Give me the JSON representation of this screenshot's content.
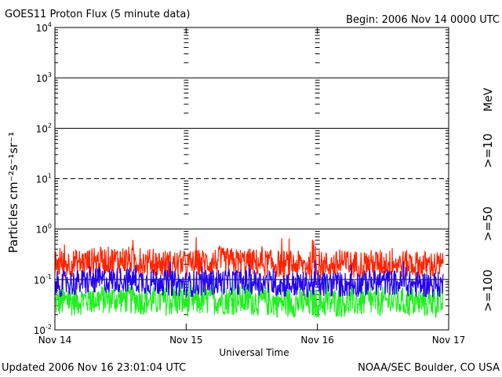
{
  "header": {
    "title": "GOES11 Proton Flux (5 minute data)",
    "begin": "Begin: 2006 Nov 14 0000 UTC"
  },
  "footer": {
    "updated": "Updated 2006 Nov 16 23:01:04 UTC",
    "source": "NOAA/SEC Boulder, CO USA"
  },
  "chart_data": {
    "type": "line",
    "title": "GOES11 Proton Flux (5 minute data)",
    "xlabel": "Universal Time",
    "ylabel": "Particles cm⁻²s⁻¹sr⁻¹",
    "yscale": "log",
    "ylim": [
      0.01,
      10000
    ],
    "xlim": [
      "2006-11-14 00:00",
      "2006-11-17 00:00"
    ],
    "x_ticks": [
      "Nov 14",
      "Nov 15",
      "Nov 16",
      "Nov 17"
    ],
    "y_ticks": [
      {
        "base": "10",
        "exp": "-2",
        "value": 0.01
      },
      {
        "base": "10",
        "exp": "-1",
        "value": 0.1
      },
      {
        "base": "10",
        "exp": "0",
        "value": 1
      },
      {
        "base": "10",
        "exp": "1",
        "value": 10
      },
      {
        "base": "10",
        "exp": "2",
        "value": 100
      },
      {
        "base": "10",
        "exp": "3",
        "value": 1000
      },
      {
        "base": "10",
        "exp": "4",
        "value": 10000
      }
    ],
    "grid": "horizontal lines at each decade (10^1 dashed), vertical tick columns at day boundaries",
    "legend_placement": "right side, vertical text",
    "unit_label": "MeV",
    "series": [
      {
        "name": ">=10",
        "color": "#ff2200",
        "x": [
          "2006-11-14 00:00",
          "2006-11-14 06:00",
          "2006-11-14 12:00",
          "2006-11-14 18:00",
          "2006-11-15 00:00",
          "2006-11-15 06:00",
          "2006-11-15 12:00",
          "2006-11-15 18:00",
          "2006-11-16 00:00",
          "2006-11-16 06:00",
          "2006-11-16 12:00",
          "2006-11-16 18:00",
          "2006-11-16 23:00"
        ],
        "y": [
          0.2,
          0.22,
          0.25,
          0.21,
          0.2,
          0.23,
          0.22,
          0.2,
          0.19,
          0.2,
          0.21,
          0.2,
          0.19
        ]
      },
      {
        "name": ">=50",
        "color": "#2200ee",
        "x": [
          "2006-11-14 00:00",
          "2006-11-14 06:00",
          "2006-11-14 12:00",
          "2006-11-14 18:00",
          "2006-11-15 00:00",
          "2006-11-15 06:00",
          "2006-11-15 12:00",
          "2006-11-15 18:00",
          "2006-11-16 00:00",
          "2006-11-16 06:00",
          "2006-11-16 12:00",
          "2006-11-16 18:00",
          "2006-11-16 23:00"
        ],
        "y": [
          0.08,
          0.09,
          0.1,
          0.09,
          0.08,
          0.09,
          0.09,
          0.08,
          0.08,
          0.08,
          0.09,
          0.08,
          0.08
        ]
      },
      {
        "name": ">=100",
        "color": "#22ee22",
        "x": [
          "2006-11-14 00:00",
          "2006-11-14 06:00",
          "2006-11-14 12:00",
          "2006-11-14 18:00",
          "2006-11-15 00:00",
          "2006-11-15 06:00",
          "2006-11-15 12:00",
          "2006-11-15 18:00",
          "2006-11-16 00:00",
          "2006-11-16 06:00",
          "2006-11-16 12:00",
          "2006-11-16 18:00",
          "2006-11-16 23:00"
        ],
        "y": [
          0.035,
          0.04,
          0.042,
          0.038,
          0.036,
          0.04,
          0.038,
          0.035,
          0.034,
          0.036,
          0.037,
          0.035,
          0.034
        ]
      }
    ]
  }
}
